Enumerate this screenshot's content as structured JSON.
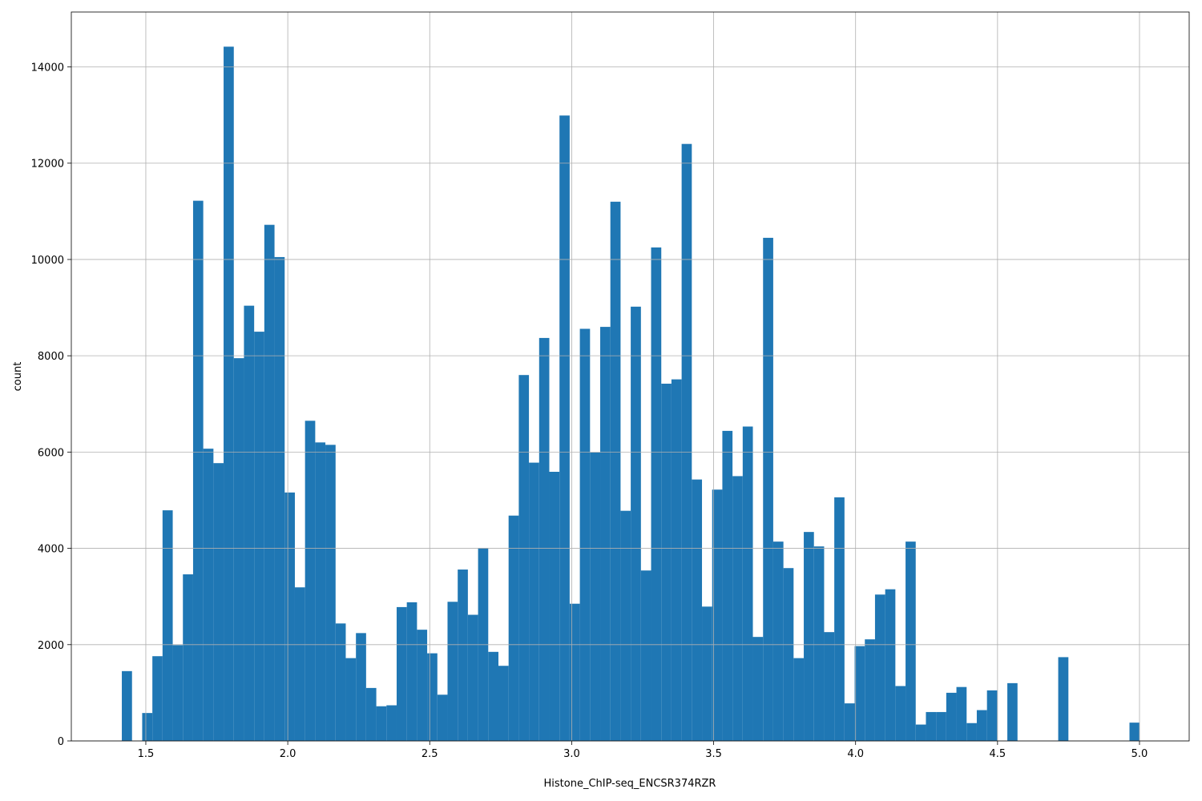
{
  "chart_data": {
    "type": "histogram",
    "x_label": "Histone_ChIP-seq_ENCSR374RZR",
    "y_label": "count",
    "color": "#1f77b4",
    "grid": true,
    "bins": [
      1.4155,
      1.4514,
      1.4872,
      1.5231,
      1.5589,
      1.5948,
      1.6306,
      1.6665,
      1.7023,
      1.7382,
      1.774,
      1.8099,
      1.8457,
      1.8816,
      1.9174,
      1.9533,
      1.9891,
      2.025,
      2.0608,
      2.0967,
      2.1325,
      2.1684,
      2.2042,
      2.2401,
      2.2759,
      2.3118,
      2.3476,
      2.3835,
      2.4193,
      2.4552,
      2.491,
      2.5269,
      2.5627,
      2.5986,
      2.6344,
      2.6703,
      2.7061,
      2.742,
      2.7778,
      2.8137,
      2.8495,
      2.8854,
      2.9212,
      2.9571,
      2.9929,
      3.0288,
      3.0646,
      3.1005,
      3.1363,
      3.1722,
      3.208,
      3.2439,
      3.2797,
      3.3156,
      3.3514,
      3.3873,
      3.4231,
      3.459,
      3.4948,
      3.5307,
      3.5665,
      3.6024,
      3.6382,
      3.6741,
      3.7099,
      3.7458,
      3.7816,
      3.8175,
      3.8533,
      3.8892,
      3.925,
      3.9609,
      3.9967,
      4.0326,
      4.0684,
      4.1043,
      4.1401,
      4.176,
      4.2118,
      4.2477,
      4.2835,
      4.3194,
      4.3552,
      4.3911,
      4.4269,
      4.4628,
      4.4986,
      4.5345,
      4.5703,
      4.6062,
      4.642,
      4.6779,
      4.7137,
      4.7496,
      4.7854,
      4.8213,
      4.8571,
      4.893,
      4.9288,
      4.9647,
      5.0005
    ],
    "values": [
      1450,
      0,
      580,
      1760,
      4790,
      1990,
      3460,
      11220,
      6070,
      5770,
      14420,
      7950,
      9040,
      8500,
      10720,
      10050,
      5160,
      3190,
      6650,
      6200,
      6150,
      2440,
      1720,
      2240,
      1100,
      720,
      740,
      2780,
      2880,
      2310,
      1820,
      960,
      2890,
      3560,
      2620,
      4010,
      1850,
      1560,
      4680,
      7600,
      5780,
      8370,
      5590,
      12990,
      2850,
      8560,
      5990,
      8600,
      11200,
      4780,
      9020,
      3540,
      10250,
      7420,
      7510,
      12400,
      5430,
      2790,
      5220,
      6440,
      5500,
      6530,
      2160,
      10450,
      4140,
      3590,
      1720,
      4340,
      4040,
      2260,
      5060,
      780,
      1970,
      2110,
      3040,
      3150,
      1140,
      4140,
      340,
      600,
      600,
      1000,
      1120,
      370,
      640,
      1050,
      0,
      1200,
      0,
      0,
      0,
      0,
      1740,
      0,
      0,
      0,
      0,
      0,
      0,
      380
    ],
    "xlim": [
      1.2376,
      5.175
    ],
    "ylim": [
      0,
      15140
    ],
    "xticks": [
      1.5,
      {
        "value": 2,
        "label": "2.0"
      },
      2.5,
      {
        "value": 3,
        "label": "3.0"
      },
      3.5,
      {
        "value": 4,
        "label": "4.0"
      },
      4.5,
      {
        "value": 5,
        "label": "5.0"
      }
    ],
    "yticks": [
      0,
      2000,
      4000,
      6000,
      8000,
      10000,
      12000,
      14000
    ]
  }
}
